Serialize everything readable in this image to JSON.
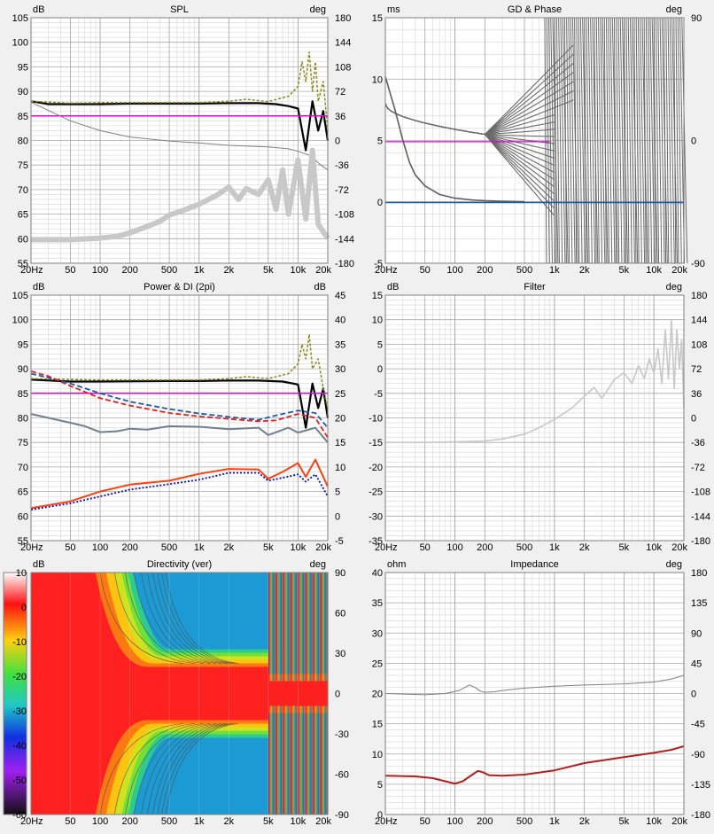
{
  "colors": {
    "black": "#000000",
    "olive": "#8a8a20",
    "magenta": "#e000e0",
    "gray": "#808080",
    "lightgray": "#c8c8c8",
    "darkgray": "#606060",
    "blue": "#1e5aa8",
    "navy": "#1010a0",
    "red": "#e02020",
    "orange": "#ff4010",
    "slate": "#708090",
    "brick": "#b02020"
  },
  "chart_data": [
    {
      "id": "spl",
      "type": "line",
      "title": "SPL",
      "left_unit": "dB",
      "right_unit": "deg",
      "x_ticks": [
        "20Hz",
        "50",
        "100",
        "200",
        "500",
        "1k",
        "2k",
        "5k",
        "10k",
        "20k"
      ],
      "y_left_ticks": [
        "105",
        "100",
        "95",
        "90",
        "85",
        "80",
        "75",
        "70",
        "65",
        "60",
        "55"
      ],
      "y_right_ticks": [
        "180",
        "144",
        "108",
        "72",
        "36",
        "0",
        "-36",
        "-72",
        "-108",
        "-144",
        "-180"
      ],
      "xlim": [
        20,
        20000
      ],
      "ylim": [
        55,
        105
      ],
      "x_scale": "log",
      "grid": true,
      "series": [
        {
          "color": "black",
          "width": 2.2,
          "x": [
            20,
            30,
            50,
            100,
            200,
            500,
            1000,
            2000,
            4000,
            6000,
            8000,
            10000,
            12000,
            14000,
            16000,
            18000,
            20000
          ],
          "y": [
            88,
            87.4,
            87.4,
            87.4,
            87.5,
            87.5,
            87.5,
            87.6,
            87.6,
            87.4,
            87,
            86.5,
            78,
            88,
            82,
            86,
            80
          ]
        },
        {
          "color": "olive",
          "width": 1.5,
          "dash": "3,2",
          "x": [
            20,
            50,
            100,
            500,
            1000,
            2000,
            3000,
            5000,
            8000,
            10000,
            11000,
            12000,
            13000,
            14000,
            15000,
            16000,
            18000,
            20000
          ],
          "y": [
            88,
            87.6,
            87.7,
            87.7,
            87.7,
            88,
            88.4,
            87.9,
            89,
            91,
            96,
            92,
            98,
            90,
            96,
            88,
            92,
            82
          ]
        },
        {
          "color": "magenta",
          "width": 1.5,
          "x": [
            20,
            20000
          ],
          "y": [
            85,
            85
          ]
        },
        {
          "color": "gray",
          "width": 1,
          "x": [
            20,
            50,
            100,
            200,
            500,
            1000,
            2000,
            5000,
            8000,
            10000,
            13000,
            15000,
            17000,
            20000
          ],
          "y": [
            87.8,
            84,
            82,
            80.7,
            79.9,
            79.5,
            79,
            78.7,
            78.3,
            77.8,
            77,
            76,
            75,
            74
          ]
        },
        {
          "color": "lightgray",
          "width": 6,
          "x": [
            20,
            50,
            100,
            150,
            200,
            300,
            400,
            500,
            700,
            1000,
            1500,
            2000,
            2500,
            3000,
            4000,
            5000,
            6000,
            7000,
            8000,
            10000,
            12000,
            14000,
            16000,
            20000
          ],
          "y": [
            59.8,
            59.8,
            60.1,
            60.5,
            61.2,
            62.5,
            63.5,
            64.8,
            65.8,
            67,
            68.8,
            70.5,
            68,
            70.2,
            69,
            72,
            66,
            74,
            65,
            76,
            64,
            78,
            63,
            60
          ]
        }
      ]
    },
    {
      "id": "gd",
      "type": "line",
      "title": "GD & Phase",
      "left_unit": "ms",
      "right_unit": "deg",
      "x_ticks": [
        "20Hz",
        "50",
        "100",
        "200",
        "500",
        "1k",
        "2k",
        "5k",
        "10k",
        "20k"
      ],
      "y_left_ticks": [
        "15",
        "10",
        "5",
        "0",
        "-5"
      ],
      "y_right_ticks": [
        "90",
        "0",
        "-90"
      ],
      "xlim": [
        20,
        20000
      ],
      "ylim": [
        -5,
        15
      ],
      "x_scale": "log",
      "grid": true,
      "series": [
        {
          "color": "darkgray",
          "width": 1.6,
          "x": [
            20,
            25,
            30,
            35,
            40,
            50,
            70,
            100,
            150,
            200,
            300,
            500
          ],
          "y": [
            10.2,
            7.5,
            5,
            3.2,
            2.2,
            1.3,
            0.6,
            0.3,
            0.15,
            0.1,
            0.05,
            0.02
          ]
        },
        {
          "color": "blue",
          "width": 1.6,
          "x": [
            20,
            20000
          ],
          "y": [
            -0.05,
            -0.05
          ]
        },
        {
          "color": "magenta",
          "width": 1.2,
          "x": [
            20,
            900
          ],
          "y": [
            4.9,
            4.9
          ]
        }
      ]
    },
    {
      "id": "power",
      "type": "line",
      "title": "Power & DI (2pi)",
      "left_unit": "dB",
      "right_unit": "dB",
      "x_ticks": [
        "20Hz",
        "50",
        "100",
        "200",
        "500",
        "1k",
        "2k",
        "5k",
        "10k",
        "20k"
      ],
      "y_left_ticks": [
        "105",
        "100",
        "95",
        "90",
        "85",
        "80",
        "75",
        "70",
        "65",
        "60",
        "55"
      ],
      "y_right_ticks": [
        "45",
        "40",
        "35",
        "30",
        "25",
        "20",
        "15",
        "10",
        "5",
        "0",
        "-5"
      ],
      "xlim": [
        20,
        20000
      ],
      "ylim": [
        55,
        105
      ],
      "x_scale": "log",
      "grid": true,
      "series": [
        {
          "color": "black",
          "width": 2.2,
          "x": [
            20,
            50,
            100,
            500,
            1000,
            2000,
            4000,
            7000,
            10000,
            12000,
            14000,
            16000,
            18000,
            20000
          ],
          "y": [
            87.8,
            87.4,
            87.4,
            87.5,
            87.5,
            87.6,
            87.6,
            87.4,
            86.8,
            78,
            87,
            82,
            86,
            80
          ]
        },
        {
          "color": "olive",
          "width": 1.5,
          "dash": "3,2",
          "x": [
            20,
            100,
            1000,
            2000,
            3000,
            5000,
            8000,
            10000,
            11000,
            12000,
            13000,
            14000,
            16000,
            18000,
            20000
          ],
          "y": [
            88,
            87.7,
            87.7,
            88,
            88.4,
            88,
            89,
            91,
            95,
            92,
            97,
            90,
            92,
            86,
            82
          ]
        },
        {
          "color": "magenta",
          "width": 1.5,
          "x": [
            20,
            20000
          ],
          "y": [
            85,
            85
          ]
        },
        {
          "color": "blue",
          "width": 1.8,
          "dash": "6,3",
          "x": [
            20,
            30,
            50,
            100,
            200,
            500,
            1000,
            2000,
            4000,
            6000,
            10000,
            15000,
            20000
          ],
          "y": [
            89,
            88.2,
            87,
            85,
            83.3,
            81.8,
            80.9,
            80.2,
            79.6,
            80.5,
            81.5,
            81,
            78
          ]
        },
        {
          "color": "red",
          "width": 1.8,
          "dash": "6,3",
          "x": [
            20,
            30,
            50,
            100,
            200,
            500,
            1000,
            2000,
            4000,
            6000,
            10000,
            15000,
            20000
          ],
          "y": [
            89.5,
            88.5,
            86.5,
            84,
            82.5,
            81,
            80.3,
            79.8,
            79.3,
            79.5,
            80.8,
            80,
            76
          ]
        },
        {
          "color": "slate",
          "width": 2,
          "x": [
            20,
            30,
            50,
            70,
            100,
            150,
            200,
            300,
            500,
            1000,
            2000,
            4000,
            5000,
            8000,
            10000,
            15000,
            20000
          ],
          "y": [
            80.8,
            80,
            79,
            78.3,
            77.1,
            77.3,
            77.8,
            77.6,
            78.3,
            78.2,
            77.7,
            78,
            76.5,
            78,
            77,
            78,
            75
          ]
        },
        {
          "color": "orange",
          "width": 2,
          "x": [
            20,
            50,
            100,
            200,
            500,
            1000,
            2000,
            4000,
            5000,
            7000,
            10000,
            12000,
            15000,
            20000
          ],
          "y": [
            61.6,
            63,
            65,
            66.4,
            67.2,
            68.6,
            69.6,
            69.5,
            67.6,
            69,
            70.8,
            68,
            71.5,
            66
          ]
        },
        {
          "color": "navy",
          "width": 1.8,
          "dash": "2,2",
          "x": [
            20,
            50,
            100,
            200,
            500,
            1000,
            2000,
            4000,
            5000,
            7000,
            10000,
            12000,
            15000,
            20000
          ],
          "y": [
            61.3,
            62.6,
            64,
            65.4,
            66.5,
            67.4,
            68.8,
            68.8,
            67.2,
            67.8,
            68.5,
            67,
            68.5,
            64
          ]
        }
      ]
    },
    {
      "id": "filter",
      "type": "line",
      "title": "Filter",
      "left_unit": "dB",
      "right_unit": "deg",
      "x_ticks": [
        "20Hz",
        "50",
        "100",
        "200",
        "500",
        "1k",
        "2k",
        "5k",
        "10k",
        "20k"
      ],
      "y_left_ticks": [
        "15",
        "10",
        "5",
        "0",
        "-5",
        "-10",
        "-15",
        "-20",
        "-25",
        "-30",
        "-35"
      ],
      "y_right_ticks": [
        "180",
        "144",
        "108",
        "72",
        "36",
        "0",
        "-36",
        "-72",
        "-108",
        "-144",
        "-180"
      ],
      "xlim": [
        20,
        20000
      ],
      "ylim": [
        -35,
        15
      ],
      "x_scale": "log",
      "grid": true,
      "series": [
        {
          "color": "lightgray",
          "width": 1.6,
          "x": [
            20,
            50,
            100,
            200,
            300,
            500,
            700,
            1000,
            1500,
            2000,
            2500,
            3000,
            3500,
            4000,
            5000,
            6000,
            7000,
            8000,
            9000,
            10000,
            11000,
            12000,
            13000,
            14000,
            15000,
            16000,
            17000,
            18000,
            19000,
            20000
          ],
          "y": [
            -15,
            -15,
            -14.9,
            -14.7,
            -14.3,
            -13.3,
            -12,
            -10.3,
            -8,
            -5.6,
            -3.8,
            -6,
            -4,
            -2.2,
            -0.8,
            -3,
            0.6,
            -2,
            2,
            -1,
            4,
            -3,
            8,
            -2,
            10,
            -4,
            8,
            0,
            6,
            -8
          ]
        }
      ]
    },
    {
      "id": "directivity",
      "type": "heatmap",
      "title": "Directivity (ver)",
      "left_unit": "dB",
      "right_unit": "deg",
      "x_ticks": [
        "20Hz",
        "50",
        "100",
        "200",
        "500",
        "1k",
        "2k",
        "5k",
        "10k",
        "20k"
      ],
      "y_right_ticks": [
        "90",
        "60",
        "30",
        "0",
        "-30",
        "-60",
        "-90"
      ],
      "colorbar_ticks": [
        "10",
        "0",
        "-10",
        "-20",
        "-30",
        "-40",
        "-50",
        "-60"
      ],
      "xlim": [
        20,
        20000
      ],
      "ylim": [
        -90,
        90
      ],
      "x_scale": "log"
    },
    {
      "id": "impedance",
      "type": "line",
      "title": "Impedance",
      "left_unit": "ohm",
      "right_unit": "deg",
      "x_ticks": [
        "20Hz",
        "50",
        "100",
        "200",
        "500",
        "1k",
        "2k",
        "5k",
        "10k",
        "20k"
      ],
      "y_left_ticks": [
        "40",
        "35",
        "30",
        "25",
        "20",
        "15",
        "10",
        "5",
        "0"
      ],
      "y_right_ticks": [
        "180",
        "135",
        "90",
        "45",
        "0",
        "-45",
        "-90",
        "-135",
        "-180"
      ],
      "xlim": [
        20,
        20000
      ],
      "ylim": [
        0,
        40
      ],
      "x_scale": "log",
      "grid": true,
      "series": [
        {
          "color": "gray",
          "width": 1,
          "x": [
            20,
            50,
            80,
            110,
            140,
            160,
            180,
            200,
            250,
            300,
            500,
            1000,
            2000,
            5000,
            10000,
            15000,
            20000
          ],
          "y": [
            20,
            19.8,
            20,
            20.5,
            21.4,
            21,
            20.4,
            20.2,
            20.3,
            20.5,
            20.9,
            21.2,
            21.4,
            21.6,
            21.9,
            22.4,
            23
          ]
        },
        {
          "color": "brick",
          "width": 2,
          "x": [
            20,
            40,
            60,
            80,
            100,
            120,
            150,
            170,
            190,
            220,
            300,
            500,
            1000,
            2000,
            5000,
            10000,
            15000,
            20000
          ],
          "y": [
            6.4,
            6.3,
            6,
            5.5,
            5.1,
            5.5,
            6.6,
            7.2,
            7,
            6.5,
            6.4,
            6.6,
            7.3,
            8.5,
            9.5,
            10.2,
            10.7,
            11.3
          ]
        }
      ]
    }
  ]
}
